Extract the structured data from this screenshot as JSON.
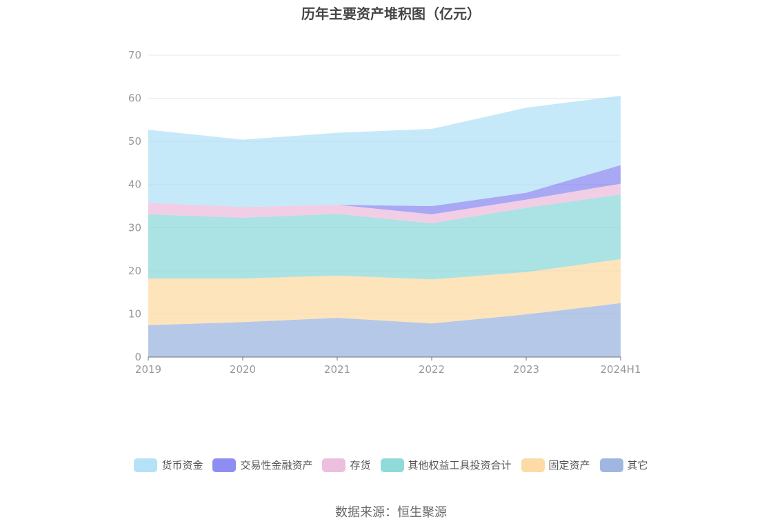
{
  "title": "历年主要资产堆积图（亿元）",
  "source": "数据来源：恒生聚源",
  "chart_data": {
    "type": "area",
    "stacked": true,
    "title": "历年主要资产堆积图（亿元）",
    "categories": [
      "2019",
      "2020",
      "2021",
      "2022",
      "2023",
      "2024H1"
    ],
    "ylim": [
      0,
      70
    ],
    "yticks": [
      0,
      10,
      20,
      30,
      40,
      50,
      60,
      70
    ],
    "grid": true,
    "legend_position": "bottom",
    "series": [
      {
        "name": "其它",
        "color": "#8eaadb",
        "values": [
          7.4,
          8.1,
          9.1,
          7.8,
          9.9,
          12.5
        ]
      },
      {
        "name": "固定资产",
        "color": "#fdd596",
        "values": [
          10.8,
          10.1,
          9.8,
          10.2,
          9.8,
          10.2
        ]
      },
      {
        "name": "其他权益工具投资合计",
        "color": "#7ed3d4",
        "values": [
          14.9,
          14.1,
          14.3,
          13.0,
          14.9,
          15.0
        ]
      },
      {
        "name": "存货",
        "color": "#e9b4d9",
        "values": [
          2.7,
          2.5,
          2.1,
          2.1,
          1.9,
          2.5
        ]
      },
      {
        "name": "交易性金融资产",
        "color": "#7a7af0",
        "values": [
          0.0,
          0.0,
          0.0,
          1.9,
          1.6,
          4.3
        ]
      },
      {
        "name": "货币资金",
        "color": "#a8ddf6",
        "values": [
          16.9,
          15.6,
          16.7,
          17.9,
          19.7,
          16.1
        ]
      }
    ]
  },
  "legend_order": [
    "货币资金",
    "交易性金融资产",
    "存货",
    "其他权益工具投资合计",
    "固定资产",
    "其它"
  ]
}
